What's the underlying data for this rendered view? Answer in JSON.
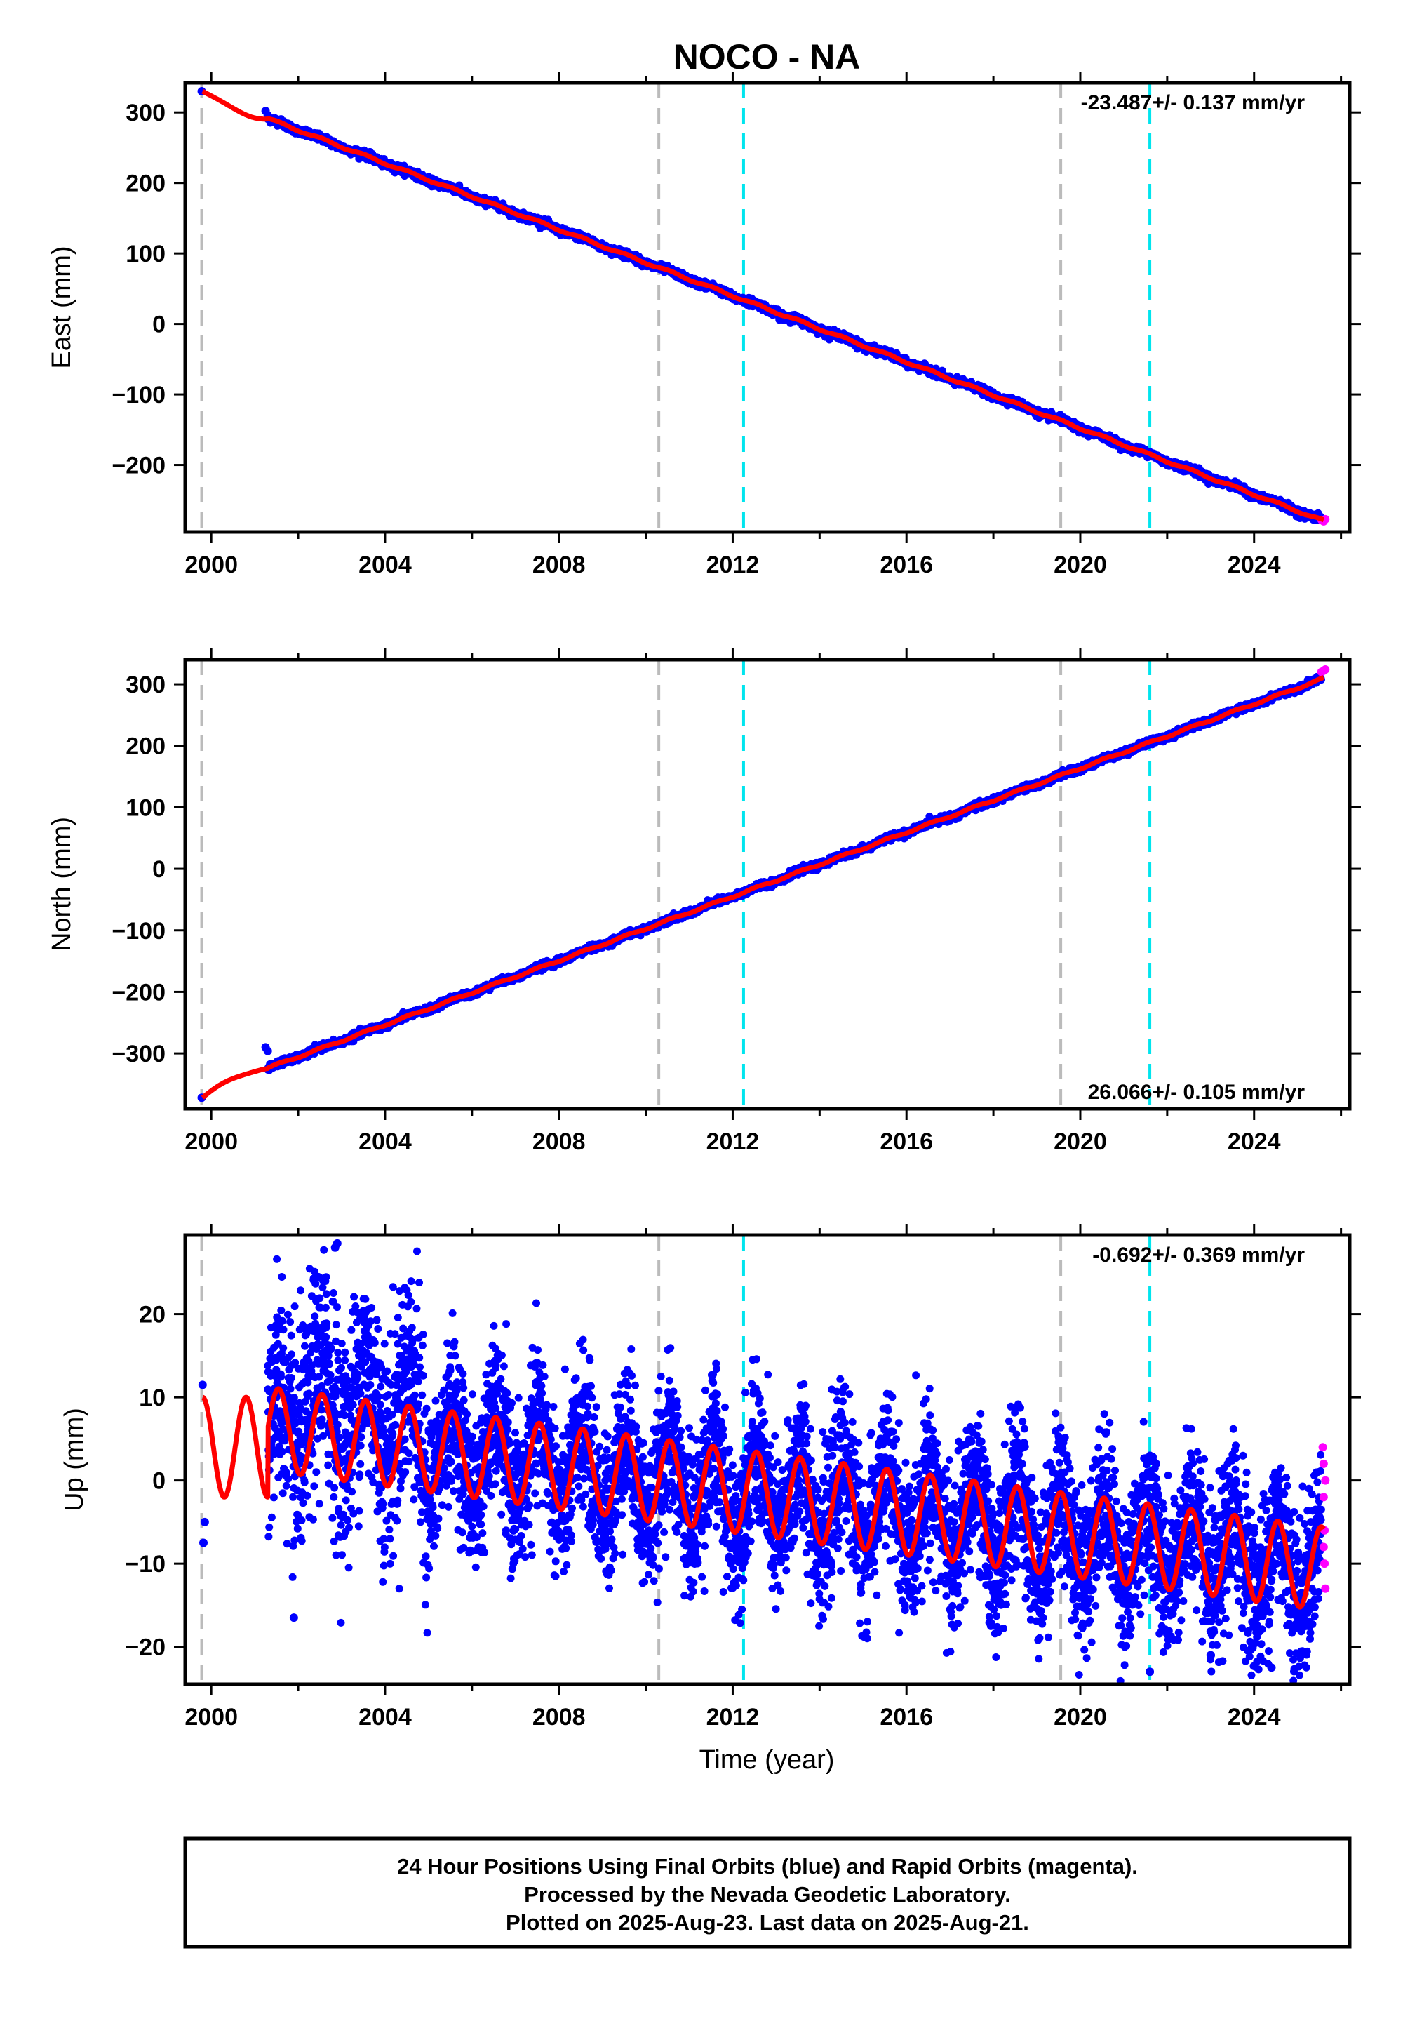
{
  "title": "NOCO - NA",
  "xlabel": "Time (year)",
  "footer": {
    "lines": [
      "24 Hour Positions Using Final Orbits (blue) and Rapid Orbits (magenta).",
      "Processed by the Nevada Geodetic Laboratory.",
      "Plotted on 2025-Aug-23. Last data on 2025-Aug-21."
    ]
  },
  "colors": {
    "final_orbits": "#0000ff",
    "rapid_orbits": "#ff00ff",
    "model": "#ff0000",
    "equipment_change": "#bbbbbb",
    "earthquake": "#00e5ee"
  },
  "chart_data": [
    {
      "type": "scatter",
      "ylabel": "East (mm)",
      "rate_label": "-23.487+/- 0.137 mm/yr",
      "xlim": [
        1999.4,
        2026.2
      ],
      "ylim": [
        -295,
        342
      ],
      "xticks": [
        2000,
        2004,
        2008,
        2012,
        2016,
        2020,
        2024
      ],
      "yticks": [
        -200,
        -100,
        0,
        100,
        200,
        300
      ],
      "model": {
        "t0": 2012.0,
        "offset_mm": 40,
        "rate_mm_per_yr": -23.487,
        "annual_amp_mm": 1.5
      },
      "data_points": [
        [
          1999.78,
          330
        ],
        [
          2001.25,
          302
        ],
        [
          2001.3,
          296
        ]
      ],
      "rapid_points": [
        [
          2025.55,
          -278
        ],
        [
          2025.6,
          -280
        ],
        [
          2025.64,
          -277
        ]
      ],
      "data_start": 2001.3,
      "data_end": 2025.55,
      "equipment_changes": [
        1999.78,
        2010.3,
        2019.55
      ],
      "earthquakes": [
        2012.25,
        2021.6
      ]
    },
    {
      "type": "scatter",
      "ylabel": "North (mm)",
      "rate_label": "26.066+/- 0.105 mm/yr",
      "xlim": [
        1999.4,
        2026.2
      ],
      "ylim": [
        -390,
        340
      ],
      "xticks": [
        2000,
        2004,
        2008,
        2012,
        2016,
        2020,
        2024
      ],
      "yticks": [
        -300,
        -200,
        -100,
        0,
        100,
        200,
        300
      ],
      "model": {
        "t0": 2012.0,
        "offset_mm": -45,
        "rate_mm_per_yr": 26.066,
        "annual_amp_mm": 1.5
      },
      "data_points": [
        [
          1999.78,
          -372
        ],
        [
          2001.25,
          -290
        ],
        [
          2001.3,
          -296
        ]
      ],
      "rapid_points": [
        [
          2025.55,
          320
        ],
        [
          2025.6,
          322
        ],
        [
          2025.64,
          324
        ]
      ],
      "data_start": 2001.3,
      "data_end": 2025.55,
      "equipment_changes": [
        1999.78,
        2010.3,
        2019.55
      ],
      "earthquakes": [
        2012.25,
        2021.6
      ]
    },
    {
      "type": "scatter",
      "ylabel": "Up (mm)",
      "rate_label": "-0.692+/- 0.369 mm/yr",
      "xlim": [
        1999.4,
        2026.2
      ],
      "ylim": [
        -24.5,
        29.5
      ],
      "xticks": [
        2000,
        2004,
        2008,
        2012,
        2016,
        2020,
        2024
      ],
      "yticks": [
        -20,
        -10,
        0,
        10,
        20
      ],
      "model": {
        "t0": 2012.0,
        "offset_mm": -1.2,
        "rate_mm_per_yr": -0.692,
        "annual_amp_mm": 5
      },
      "data_points": [
        [
          1999.8,
          11.5
        ],
        [
          1999.82,
          -7.5
        ],
        [
          1999.85,
          -5
        ],
        [
          2001.9,
          -16.5
        ],
        [
          2002.85,
          28
        ],
        [
          2002.9,
          28.5
        ],
        [
          2002.8,
          21.5
        ],
        [
          2021.6,
          -23
        ],
        [
          2023.0,
          -21
        ],
        [
          2024.4,
          -22.5
        ]
      ],
      "rapid_points": [
        [
          2025.58,
          4
        ],
        [
          2025.6,
          2
        ],
        [
          2025.6,
          -2
        ],
        [
          2025.62,
          -6
        ],
        [
          2025.62,
          -10
        ],
        [
          2025.64,
          -13
        ],
        [
          2025.64,
          0
        ],
        [
          2025.6,
          -8
        ]
      ],
      "data_start": 2001.3,
      "data_end": 2025.55,
      "equipment_changes": [
        1999.78,
        2010.3,
        2019.55
      ],
      "earthquakes": [
        2012.25,
        2021.6
      ]
    }
  ]
}
